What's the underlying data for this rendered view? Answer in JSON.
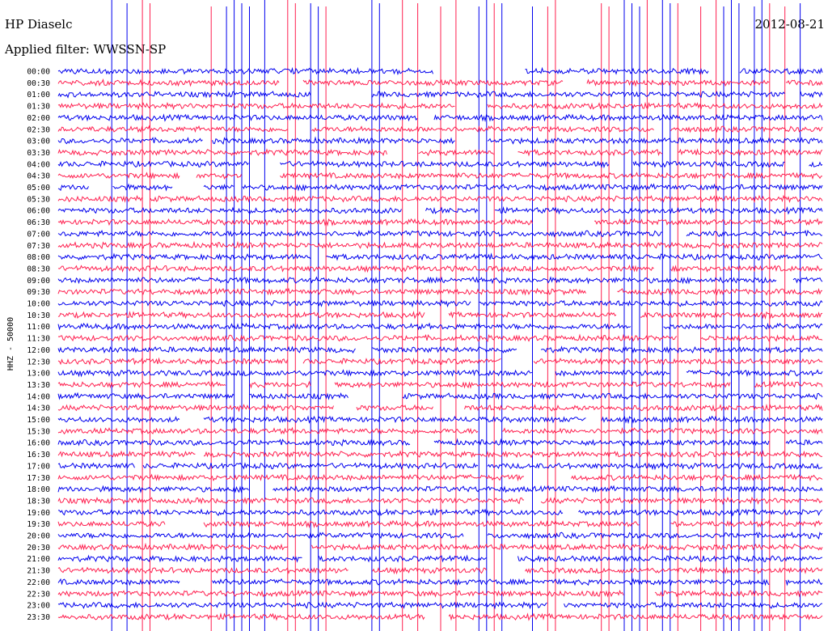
{
  "header": {
    "station": "HP Diaselc",
    "date": "2012-08-21",
    "filter": "Applied filter: WWSSN-SP"
  },
  "chart_data": {
    "type": "line",
    "title": "HP Diaselc",
    "ylabel": "HHZ - 50000",
    "row_labels": [
      "00:00",
      "00:30",
      "01:00",
      "01:30",
      "02:00",
      "02:30",
      "03:00",
      "03:30",
      "04:00",
      "04:30",
      "05:00",
      "05:30",
      "06:00",
      "06:30",
      "07:00",
      "07:30",
      "08:00",
      "08:30",
      "09:00",
      "09:30",
      "10:00",
      "10:30",
      "11:00",
      "11:30",
      "12:00",
      "12:30",
      "13:00",
      "13:30",
      "14:00",
      "14:30",
      "15:00",
      "15:30",
      "16:00",
      "16:30",
      "17:00",
      "17:30",
      "18:00",
      "18:30",
      "19:00",
      "19:30",
      "20:00",
      "20:30",
      "21:00",
      "21:30",
      "22:00",
      "22:30",
      "23:00",
      "23:30"
    ],
    "colors": {
      "even": "#0000ee",
      "odd": "#ff1f4f"
    },
    "gaps": [
      [
        0,
        0.49,
        0.61
      ],
      [
        0,
        0.85,
        0.89
      ],
      [
        1,
        0.29,
        0.32
      ],
      [
        1,
        0.66,
        0.69
      ],
      [
        1,
        0.93,
        0.95
      ],
      [
        2,
        0.33,
        0.41
      ],
      [
        2,
        0.95,
        0.97
      ],
      [
        3,
        0.52,
        0.56
      ],
      [
        4,
        0.47,
        0.49
      ],
      [
        5,
        0.3,
        0.33
      ],
      [
        5,
        0.78,
        0.8
      ],
      [
        6,
        0.19,
        0.2
      ],
      [
        6,
        0.52,
        0.56
      ],
      [
        7,
        0.43,
        0.47
      ],
      [
        7,
        0.57,
        0.6
      ],
      [
        7,
        0.79,
        0.81
      ],
      [
        8,
        0.25,
        0.29
      ],
      [
        8,
        0.72,
        0.75
      ],
      [
        8,
        0.95,
        0.98
      ],
      [
        9,
        0.16,
        0.18
      ],
      [
        9,
        0.24,
        0.29
      ],
      [
        10,
        0.04,
        0.07
      ],
      [
        10,
        0.15,
        0.19
      ],
      [
        10,
        0.23,
        0.24
      ],
      [
        11,
        0.11,
        0.12
      ],
      [
        12,
        0.45,
        0.48
      ],
      [
        12,
        0.55,
        0.57
      ],
      [
        13,
        0.62,
        0.7
      ],
      [
        14,
        0.31,
        0.31
      ],
      [
        14,
        0.79,
        0.82
      ],
      [
        16,
        0.33,
        0.35
      ],
      [
        17,
        0.78,
        0.8
      ],
      [
        18,
        0.94,
        0.96
      ],
      [
        19,
        0.69,
        0.73
      ],
      [
        20,
        0.54,
        0.55
      ],
      [
        21,
        0.48,
        0.51
      ],
      [
        21,
        0.73,
        0.76
      ],
      [
        22,
        0.75,
        0.79
      ],
      [
        23,
        0.81,
        0.84
      ],
      [
        24,
        0.39,
        0.41
      ],
      [
        24,
        0.6,
        0.63
      ],
      [
        25,
        0.3,
        0.32
      ],
      [
        25,
        0.58,
        0.62
      ],
      [
        26,
        0.62,
        0.65
      ],
      [
        26,
        0.8,
        0.82
      ],
      [
        27,
        0.22,
        0.25
      ],
      [
        27,
        0.33,
        0.36
      ],
      [
        27,
        0.88,
        0.91
      ],
      [
        28,
        0.23,
        0.25
      ],
      [
        28,
        0.38,
        0.45
      ],
      [
        29,
        0.36,
        0.39
      ],
      [
        29,
        0.49,
        0.53
      ],
      [
        30,
        0.16,
        0.19
      ],
      [
        30,
        0.69,
        0.71
      ],
      [
        31,
        0.55,
        0.58
      ],
      [
        32,
        0.46,
        0.49
      ],
      [
        32,
        0.93,
        0.95
      ],
      [
        33,
        0.18,
        0.19
      ],
      [
        34,
        0.1,
        0.11
      ],
      [
        34,
        0.55,
        0.56
      ],
      [
        35,
        0.61,
        0.67
      ],
      [
        36,
        0.25,
        0.28
      ],
      [
        37,
        0.61,
        0.63
      ],
      [
        38,
        0.66,
        0.68
      ],
      [
        39,
        0.14,
        0.19
      ],
      [
        39,
        0.76,
        0.8
      ],
      [
        40,
        0.53,
        0.56
      ],
      [
        41,
        0.3,
        0.33
      ],
      [
        42,
        0.32,
        0.34
      ],
      [
        42,
        0.56,
        0.6
      ],
      [
        43,
        0.38,
        0.41
      ],
      [
        43,
        0.56,
        0.61
      ],
      [
        44,
        0.16,
        0.2
      ],
      [
        44,
        0.93,
        0.95
      ],
      [
        45,
        0.74,
        0.78
      ],
      [
        46,
        0.64,
        0.66
      ],
      [
        47,
        0.48,
        0.51
      ]
    ],
    "vertical_spikes": {
      "blue": [
        0.07,
        0.09,
        0.22,
        0.23,
        0.24,
        0.25,
        0.27,
        0.33,
        0.34,
        0.41,
        0.42,
        0.55,
        0.56,
        0.58,
        0.62,
        0.74,
        0.75,
        0.76,
        0.79,
        0.8,
        0.87,
        0.88,
        0.89,
        0.91,
        0.92,
        0.97
      ],
      "red": [
        0.11,
        0.12,
        0.2,
        0.3,
        0.31,
        0.35,
        0.45,
        0.47,
        0.5,
        0.52,
        0.57,
        0.64,
        0.65,
        0.71,
        0.72,
        0.77,
        0.81,
        0.84,
        0.86,
        0.93,
        0.95
      ]
    }
  }
}
